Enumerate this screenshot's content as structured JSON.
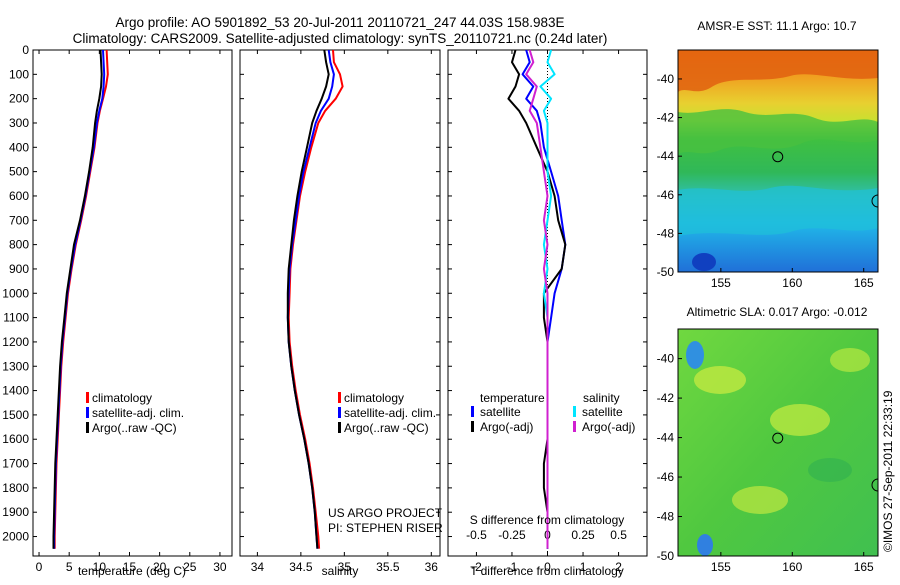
{
  "header": {
    "title_line1": "Argo profile: AO 5901892_53 20-Jul-2011 20110721_247 44.03S 158.983E",
    "title_line2": "Climatology: CARS2009. Satellite-adjusted climatology: synTS_20110721.nc (0.24d later)"
  },
  "colors": {
    "climatology": "#ff0000",
    "satellite": "#0000ff",
    "argo": "#000000",
    "sal_satellite": "#00e5ff",
    "sal_argo": "#d020d0"
  },
  "credit": {
    "line1": "US ARGO PROJECT",
    "line2": "PI: STEPHEN RISER"
  },
  "timestamp": "©IMOS 27-Sep-2011 22:33:19",
  "chart_data": [
    {
      "type": "line",
      "id": "temperature",
      "xlabel": "temperature (deg C)",
      "xlim": [
        -1,
        32
      ],
      "xticks": [
        0,
        5,
        10,
        15,
        20,
        25,
        30
      ],
      "ylim": [
        2080,
        0
      ],
      "yticks": [
        0,
        100,
        200,
        300,
        400,
        500,
        600,
        700,
        800,
        900,
        1000,
        1100,
        1200,
        1300,
        1400,
        1500,
        1600,
        1700,
        1800,
        1900,
        2000
      ],
      "legend": [
        "climatology",
        "satellite-adj. clim.",
        "Argo(..raw -QC)"
      ],
      "depth": [
        0,
        50,
        100,
        150,
        200,
        250,
        300,
        400,
        500,
        600,
        700,
        800,
        900,
        1000,
        1100,
        1200,
        1300,
        1400,
        1500,
        1600,
        1700,
        1800,
        1900,
        2000,
        2050
      ],
      "series": [
        {
          "name": "climatology",
          "color_key": "climatology",
          "values": [
            11.2,
            11.3,
            11.4,
            11.1,
            10.6,
            10.1,
            9.7,
            9.2,
            8.5,
            7.8,
            7.0,
            6.1,
            5.4,
            4.8,
            4.4,
            4.0,
            3.7,
            3.5,
            3.3,
            3.1,
            2.9,
            2.8,
            2.7,
            2.6,
            2.6
          ]
        },
        {
          "name": "satellite-adj. clim.",
          "color_key": "satellite",
          "values": [
            10.6,
            10.7,
            10.8,
            10.7,
            10.5,
            10.0,
            9.6,
            9.1,
            8.4,
            7.7,
            6.9,
            6.0,
            5.3,
            4.7,
            4.3,
            3.9,
            3.6,
            3.4,
            3.2,
            3.0,
            2.8,
            2.7,
            2.6,
            2.5,
            2.5
          ]
        },
        {
          "name": "Argo(..raw -QC)",
          "color_key": "argo",
          "values": [
            10.2,
            10.3,
            10.4,
            10.3,
            10.0,
            9.6,
            9.3,
            8.9,
            8.3,
            7.6,
            6.8,
            5.8,
            5.2,
            4.6,
            4.2,
            3.8,
            3.5,
            3.3,
            3.1,
            2.9,
            2.7,
            2.6,
            2.5,
            2.4,
            2.4
          ]
        }
      ]
    },
    {
      "type": "line",
      "id": "salinity",
      "xlabel": "salinity",
      "xlim": [
        33.8,
        36.1
      ],
      "xticks": [
        34,
        34.5,
        35,
        35.5,
        36
      ],
      "ylim": [
        2080,
        0
      ],
      "legend": [
        "climatology",
        "satellite-adj. clim.",
        "Argo(..raw -QC)"
      ],
      "depth": [
        0,
        50,
        100,
        150,
        200,
        250,
        300,
        400,
        500,
        600,
        700,
        800,
        900,
        1000,
        1100,
        1200,
        1300,
        1400,
        1500,
        1600,
        1700,
        1800,
        1900,
        2000,
        2050
      ],
      "series": [
        {
          "name": "climatology",
          "color_key": "climatology",
          "values": [
            34.87,
            34.88,
            34.95,
            34.98,
            34.9,
            34.78,
            34.7,
            34.62,
            34.55,
            34.49,
            34.45,
            34.41,
            34.38,
            34.37,
            34.36,
            34.37,
            34.4,
            34.44,
            34.49,
            34.55,
            34.6,
            34.64,
            34.67,
            34.7,
            34.71
          ]
        },
        {
          "name": "satellite-adj. clim.",
          "color_key": "satellite",
          "values": [
            34.82,
            34.84,
            34.88,
            34.86,
            34.82,
            34.73,
            34.67,
            34.6,
            34.53,
            34.48,
            34.44,
            34.4,
            34.37,
            34.36,
            34.35,
            34.36,
            34.39,
            34.43,
            34.48,
            34.54,
            34.59,
            34.63,
            34.66,
            34.68,
            34.69
          ]
        },
        {
          "name": "Argo(..raw -QC)",
          "color_key": "argo",
          "values": [
            34.77,
            34.79,
            34.82,
            34.79,
            34.74,
            34.68,
            34.63,
            34.57,
            34.51,
            34.46,
            34.42,
            34.39,
            34.36,
            34.35,
            34.35,
            34.36,
            34.39,
            34.43,
            34.48,
            34.54,
            34.59,
            34.63,
            34.66,
            34.68,
            34.69
          ]
        }
      ]
    },
    {
      "type": "line",
      "id": "difference",
      "xlabel": "T difference from climatology",
      "xlabel_top": "S difference from climatology",
      "xlim": [
        -2.8,
        2.8
      ],
      "xticks": [
        -2,
        -1,
        0,
        1,
        2
      ],
      "xticks_top_labels": [
        "-0.5",
        "-0.25",
        "0",
        "0.25",
        "0.5"
      ],
      "ylim": [
        2080,
        0
      ],
      "legend_titles": [
        "temperature",
        "salinity"
      ],
      "legend": [
        "satellite",
        "Argo(-adj)",
        "satellite",
        "Argo(-adj)"
      ],
      "depth": [
        0,
        50,
        100,
        150,
        200,
        250,
        300,
        400,
        500,
        600,
        700,
        800,
        900,
        1000,
        1100,
        1200,
        1300,
        1400,
        1500,
        1600,
        1700,
        1800,
        1900,
        2000,
        2050
      ],
      "series": [
        {
          "name": "satellite",
          "group": "temperature",
          "color_key": "satellite",
          "values": [
            -0.6,
            -0.5,
            -0.7,
            -0.4,
            -0.6,
            -0.3,
            -0.2,
            -0.1,
            0.1,
            0.3,
            0.4,
            0.5,
            0.4,
            0.2,
            0.1,
            0.0,
            0.0,
            0.0,
            0.0,
            0.0,
            0.0,
            0.0,
            0.0,
            0.0,
            0.0
          ]
        },
        {
          "name": "Argo(-adj)",
          "group": "temperature",
          "color_key": "argo",
          "values": [
            -0.9,
            -1.0,
            -0.8,
            -0.9,
            -1.1,
            -0.8,
            -0.6,
            -0.3,
            0.0,
            0.2,
            0.3,
            0.5,
            0.4,
            -0.1,
            -0.1,
            0.0,
            0.0,
            0.0,
            0.0,
            0.0,
            -0.1,
            -0.1,
            0.0,
            0.0,
            0.0
          ]
        },
        {
          "name": "satellite",
          "group": "salinity",
          "color_key": "sal_satellite",
          "values": [
            0.1,
            0.0,
            0.2,
            -0.2,
            0.1,
            -0.1,
            0.0,
            0.0,
            0.0,
            0.1,
            0.0,
            -0.1,
            0.0,
            -0.1,
            0.0,
            0.0,
            0.0,
            0.0,
            0.0,
            0.0,
            0.0,
            0.0,
            0.0,
            0.0,
            0.0
          ]
        },
        {
          "name": "Argo(-adj)",
          "group": "salinity",
          "color_key": "sal_argo",
          "values": [
            -0.5,
            -0.4,
            -0.6,
            -0.3,
            -0.4,
            -0.5,
            -0.3,
            -0.2,
            -0.1,
            0.0,
            -0.1,
            0.0,
            -0.1,
            0.0,
            0.0,
            0.0,
            0.0,
            0.0,
            0.0,
            0.0,
            0.0,
            0.0,
            0.0,
            0.0,
            0.0
          ]
        }
      ]
    },
    {
      "type": "heatmap",
      "id": "sst",
      "title": "AMSR-E SST: 11.1 Argo: 10.7",
      "xlim": [
        152,
        166
      ],
      "ylim": [
        -50,
        -38.5
      ],
      "xticks": [
        155,
        160,
        165
      ],
      "yticks": [
        -50,
        -48,
        -46,
        -44,
        -42,
        -40
      ],
      "marker": {
        "lon": 158.983,
        "lat": -44.03
      }
    },
    {
      "type": "heatmap",
      "id": "sla",
      "title": "Altimetric SLA: 0.017 Argo: -0.012",
      "xlim": [
        152,
        166
      ],
      "ylim": [
        -50,
        -38.5
      ],
      "xticks": [
        155,
        160,
        165
      ],
      "yticks": [
        -50,
        -48,
        -46,
        -44,
        -42,
        -40
      ],
      "marker": {
        "lon": 158.983,
        "lat": -44.03
      }
    }
  ]
}
